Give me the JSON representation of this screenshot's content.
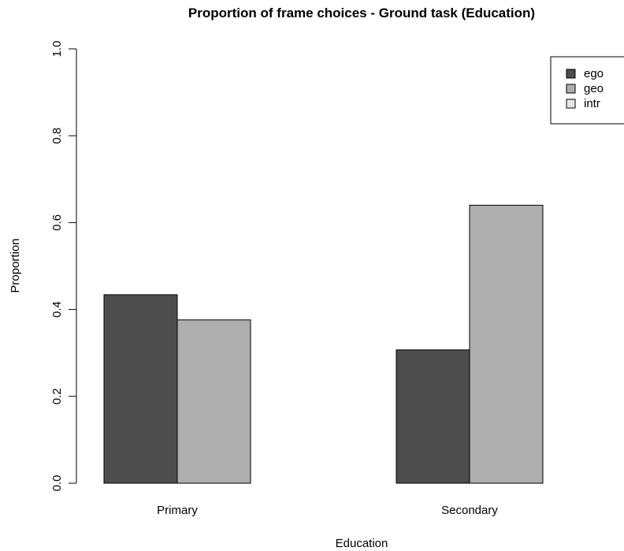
{
  "chart_data": {
    "type": "bar",
    "title": "Proportion of frame choices - Ground task (Education)",
    "xlabel": "Education",
    "ylabel": "Proportion",
    "categories": [
      "Primary",
      "Secondary"
    ],
    "series": [
      {
        "name": "ego",
        "values": [
          0.434,
          0.307
        ],
        "color": "#4d4d4d"
      },
      {
        "name": "geo",
        "values": [
          0.376,
          0.64
        ],
        "color": "#aeaeae"
      },
      {
        "name": "intr",
        "values": [
          0.0,
          0.0
        ],
        "color": "#e6e6e6"
      }
    ],
    "ylim": [
      0,
      1
    ],
    "yticks": [
      "0.0",
      "0.2",
      "0.4",
      "0.6",
      "0.8",
      "1.0"
    ],
    "grid": false,
    "legend_position": "top-right"
  }
}
